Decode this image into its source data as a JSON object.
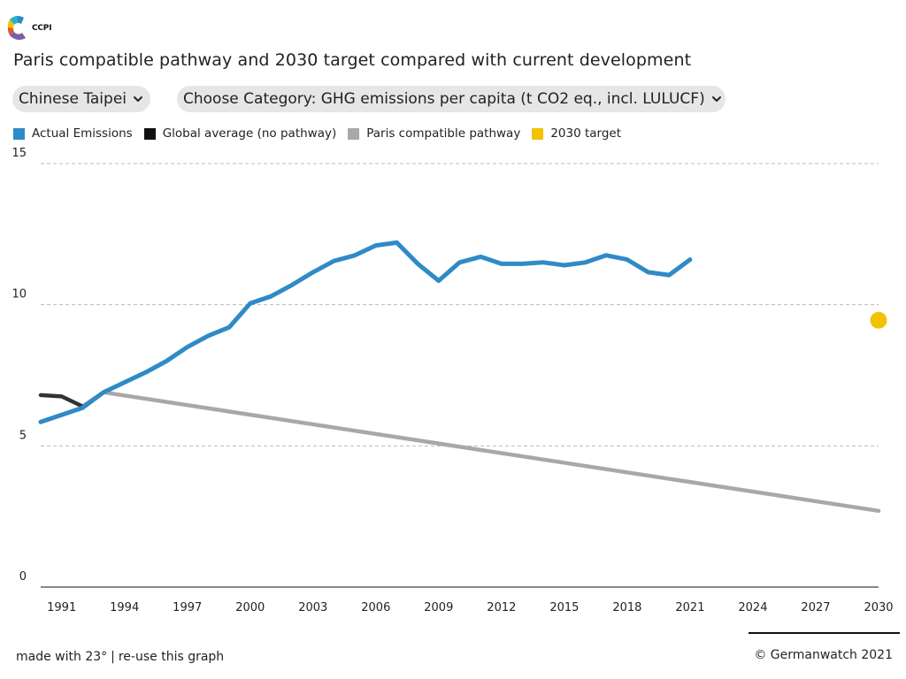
{
  "logo": {
    "text": "CCPI",
    "colors": [
      "#2f8ac7",
      "#27b2c9",
      "#f2c200",
      "#7b5fa5",
      "#e35a2d"
    ]
  },
  "title": "Paris compatible pathway and 2030 target compared with current development",
  "controls": {
    "country": "Chinese Taipei",
    "category": "Choose Category: GHG emissions per capita (t CO2 eq., incl. LULUCF)"
  },
  "legend": [
    {
      "label": "Actual Emissions",
      "color": "#2f8ac7"
    },
    {
      "label": "Global average (no pathway)",
      "color": "#111111"
    },
    {
      "label": "Paris compatible pathway",
      "color": "#a8a8a8"
    },
    {
      "label": "2030 target",
      "color": "#f2c200"
    }
  ],
  "chart_data": {
    "type": "line",
    "title": "Paris compatible pathway and 2030 target compared with current development",
    "xlabel": "",
    "ylabel": "",
    "xlim": [
      1990,
      2030
    ],
    "ylim": [
      0,
      15
    ],
    "y_ticks": [
      "0",
      "5",
      "10",
      "15"
    ],
    "x_ticks": [
      "1991",
      "1994",
      "1997",
      "2000",
      "2003",
      "2006",
      "2009",
      "2012",
      "2015",
      "2018",
      "2021",
      "2024",
      "2027",
      "2030"
    ],
    "grid": true,
    "legend_position": "top-left",
    "series": [
      {
        "name": "Actual Emissions",
        "color": "#2f8ac7",
        "x": [
          1990,
          1991,
          1992,
          1993,
          1994,
          1995,
          1996,
          1997,
          1998,
          1999,
          2000,
          2001,
          2002,
          2003,
          2004,
          2005,
          2006,
          2007,
          2008,
          2009,
          2010,
          2011,
          2012,
          2013,
          2014,
          2015,
          2016,
          2017,
          2018,
          2019,
          2020,
          2021
        ],
        "y": [
          5.85,
          6.1,
          6.35,
          6.9,
          7.25,
          7.6,
          8.0,
          8.5,
          8.9,
          9.2,
          10.05,
          10.3,
          10.7,
          11.15,
          11.55,
          11.75,
          12.1,
          12.2,
          11.45,
          10.85,
          11.5,
          11.7,
          11.45,
          11.45,
          11.5,
          11.4,
          11.5,
          11.75,
          11.6,
          11.15,
          11.05,
          11.6
        ]
      },
      {
        "name": "Global average (no pathway)",
        "color": "#333333",
        "x": [
          1990,
          1991,
          1992
        ],
        "y": [
          6.8,
          6.75,
          6.4
        ]
      },
      {
        "name": "Paris compatible pathway",
        "color": "#a8a8a8",
        "x": [
          1992,
          1993,
          2030
        ],
        "y": [
          6.4,
          6.9,
          2.7
        ]
      },
      {
        "name": "2030 target",
        "color": "#f2c200",
        "x": [
          2030
        ],
        "y": [
          9.45
        ]
      }
    ]
  },
  "footer": {
    "made_with": "made with 23°",
    "separator": "|",
    "reuse": "re-use this graph",
    "copyright": "©  Germanwatch 2021"
  }
}
